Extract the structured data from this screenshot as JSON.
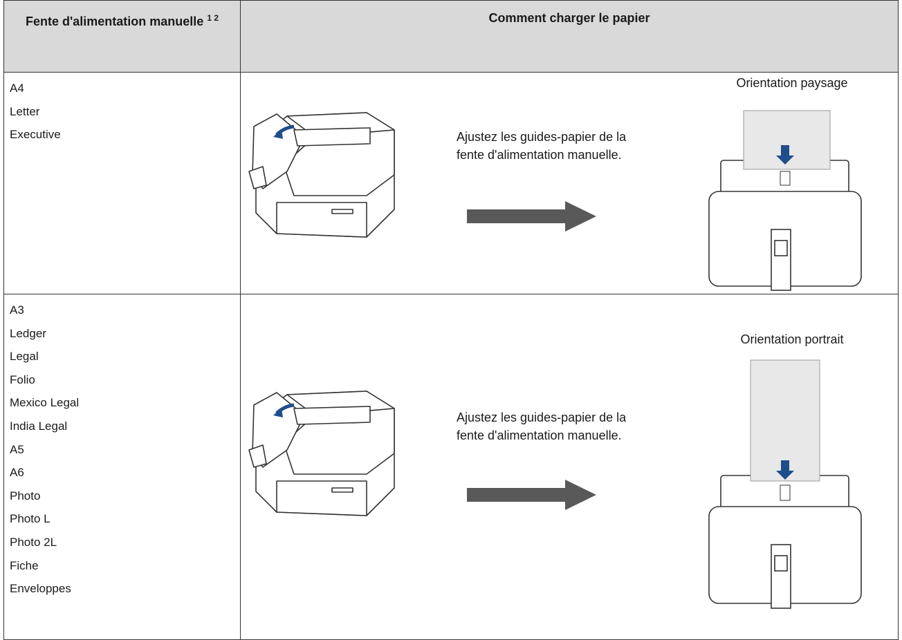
{
  "table": {
    "header": {
      "size_column": "Fente d'alimentation manuelle",
      "footnotes": "1 2",
      "method_column": "Comment charger le papier"
    },
    "rows": [
      {
        "sizes": [
          "A4",
          "Letter",
          "Executive"
        ],
        "instruction": "Ajustez les guides-papier de la fente d'alimentation manuelle.",
        "orientation": "Orientation paysage"
      },
      {
        "sizes": [
          "A3",
          "Ledger",
          "Legal",
          "Folio",
          "Mexico Legal",
          "India Legal",
          "A5",
          "A6",
          "Photo",
          "Photo L",
          "Photo 2L",
          "Fiche",
          "Enveloppes"
        ],
        "instruction": "Ajustez les guides-papier de la fente d'alimentation manuelle.",
        "orientation": "Orientation portrait"
      }
    ]
  }
}
